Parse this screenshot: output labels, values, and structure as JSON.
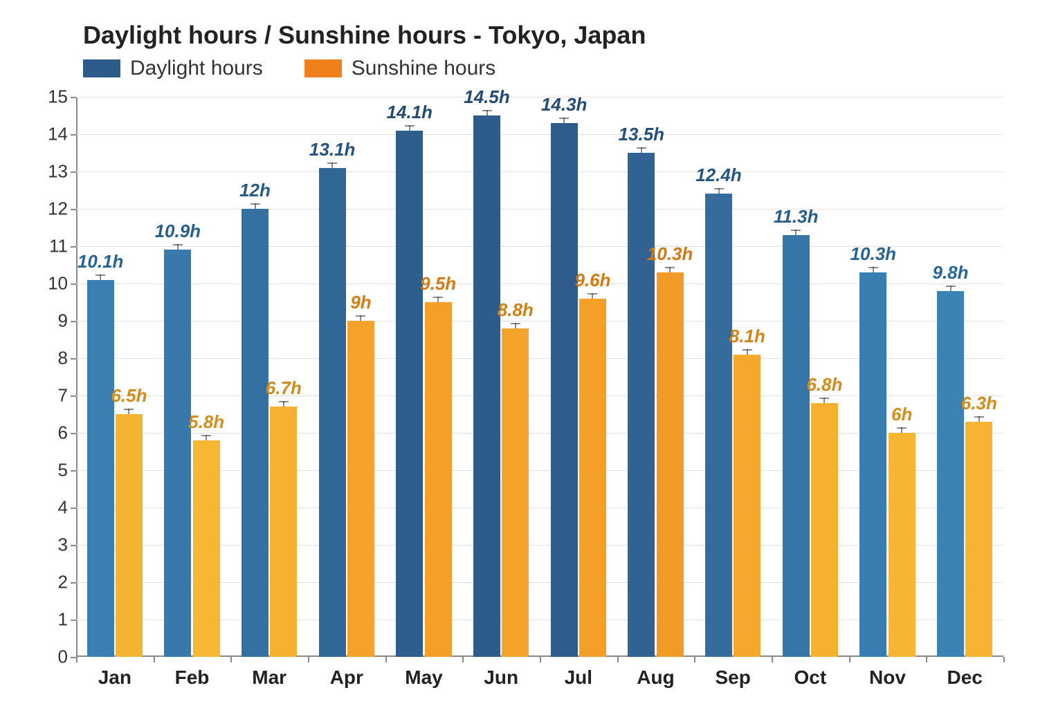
{
  "chart": {
    "type": "bar",
    "title": "Daylight hours / Sunshine hours - Tokyo, Japan",
    "title_fontsize": 36,
    "legend": {
      "items": [
        {
          "label": "Daylight hours",
          "color_low": "#46a3d9",
          "color_high": "#2d5b8a"
        },
        {
          "label": "Sunshine hours",
          "color_low": "#f7b733",
          "color_high": "#ef7f1a"
        }
      ],
      "fontsize": 30
    },
    "categories": [
      "Jan",
      "Feb",
      "Mar",
      "Apr",
      "May",
      "Jun",
      "Jul",
      "Aug",
      "Sep",
      "Oct",
      "Nov",
      "Dec"
    ],
    "series": [
      {
        "name": "Daylight hours",
        "values": [
          10.1,
          10.9,
          12,
          13.1,
          14.1,
          14.5,
          14.3,
          13.5,
          12.4,
          11.3,
          10.3,
          9.8
        ],
        "labels": [
          "10.1h",
          "10.9h",
          "12h",
          "13.1h",
          "14.1h",
          "14.5h",
          "14.3h",
          "13.5h",
          "12.4h",
          "11.3h",
          "10.3h",
          "9.8h"
        ],
        "color_low": "#46a3d9",
        "color_high": "#2d5b8a",
        "label_color_low": "#2a7db5",
        "label_color_high": "#244a72"
      },
      {
        "name": "Sunshine hours",
        "values": [
          6.5,
          5.8,
          6.7,
          9,
          9.5,
          8.8,
          9.6,
          10.3,
          8.1,
          6.8,
          6,
          6.3
        ],
        "labels": [
          "6.5h",
          "5.8h",
          "6.7h",
          "9h",
          "9.5h",
          "8.8h",
          "9.6h",
          "10.3h",
          "8.1h",
          "6.8h",
          "6h",
          "6.3h"
        ],
        "color_low": "#f7b733",
        "color_high": "#ef7f1a",
        "label_color_low": "#d38f1a",
        "label_color_high": "#d0620a"
      }
    ],
    "ylim": [
      0,
      15
    ],
    "ytick_step": 1,
    "axis_fontsize": 26,
    "xlabel_fontsize": 28,
    "background_color": "#ffffff",
    "grid_color": "#e0e0e0",
    "axis_color": "#888888",
    "bar_group_gap": 0.14,
    "bar_inner_gap": 0.02,
    "error_height": 0.15,
    "value_range_for_color": [
      5.8,
      14.5
    ]
  }
}
